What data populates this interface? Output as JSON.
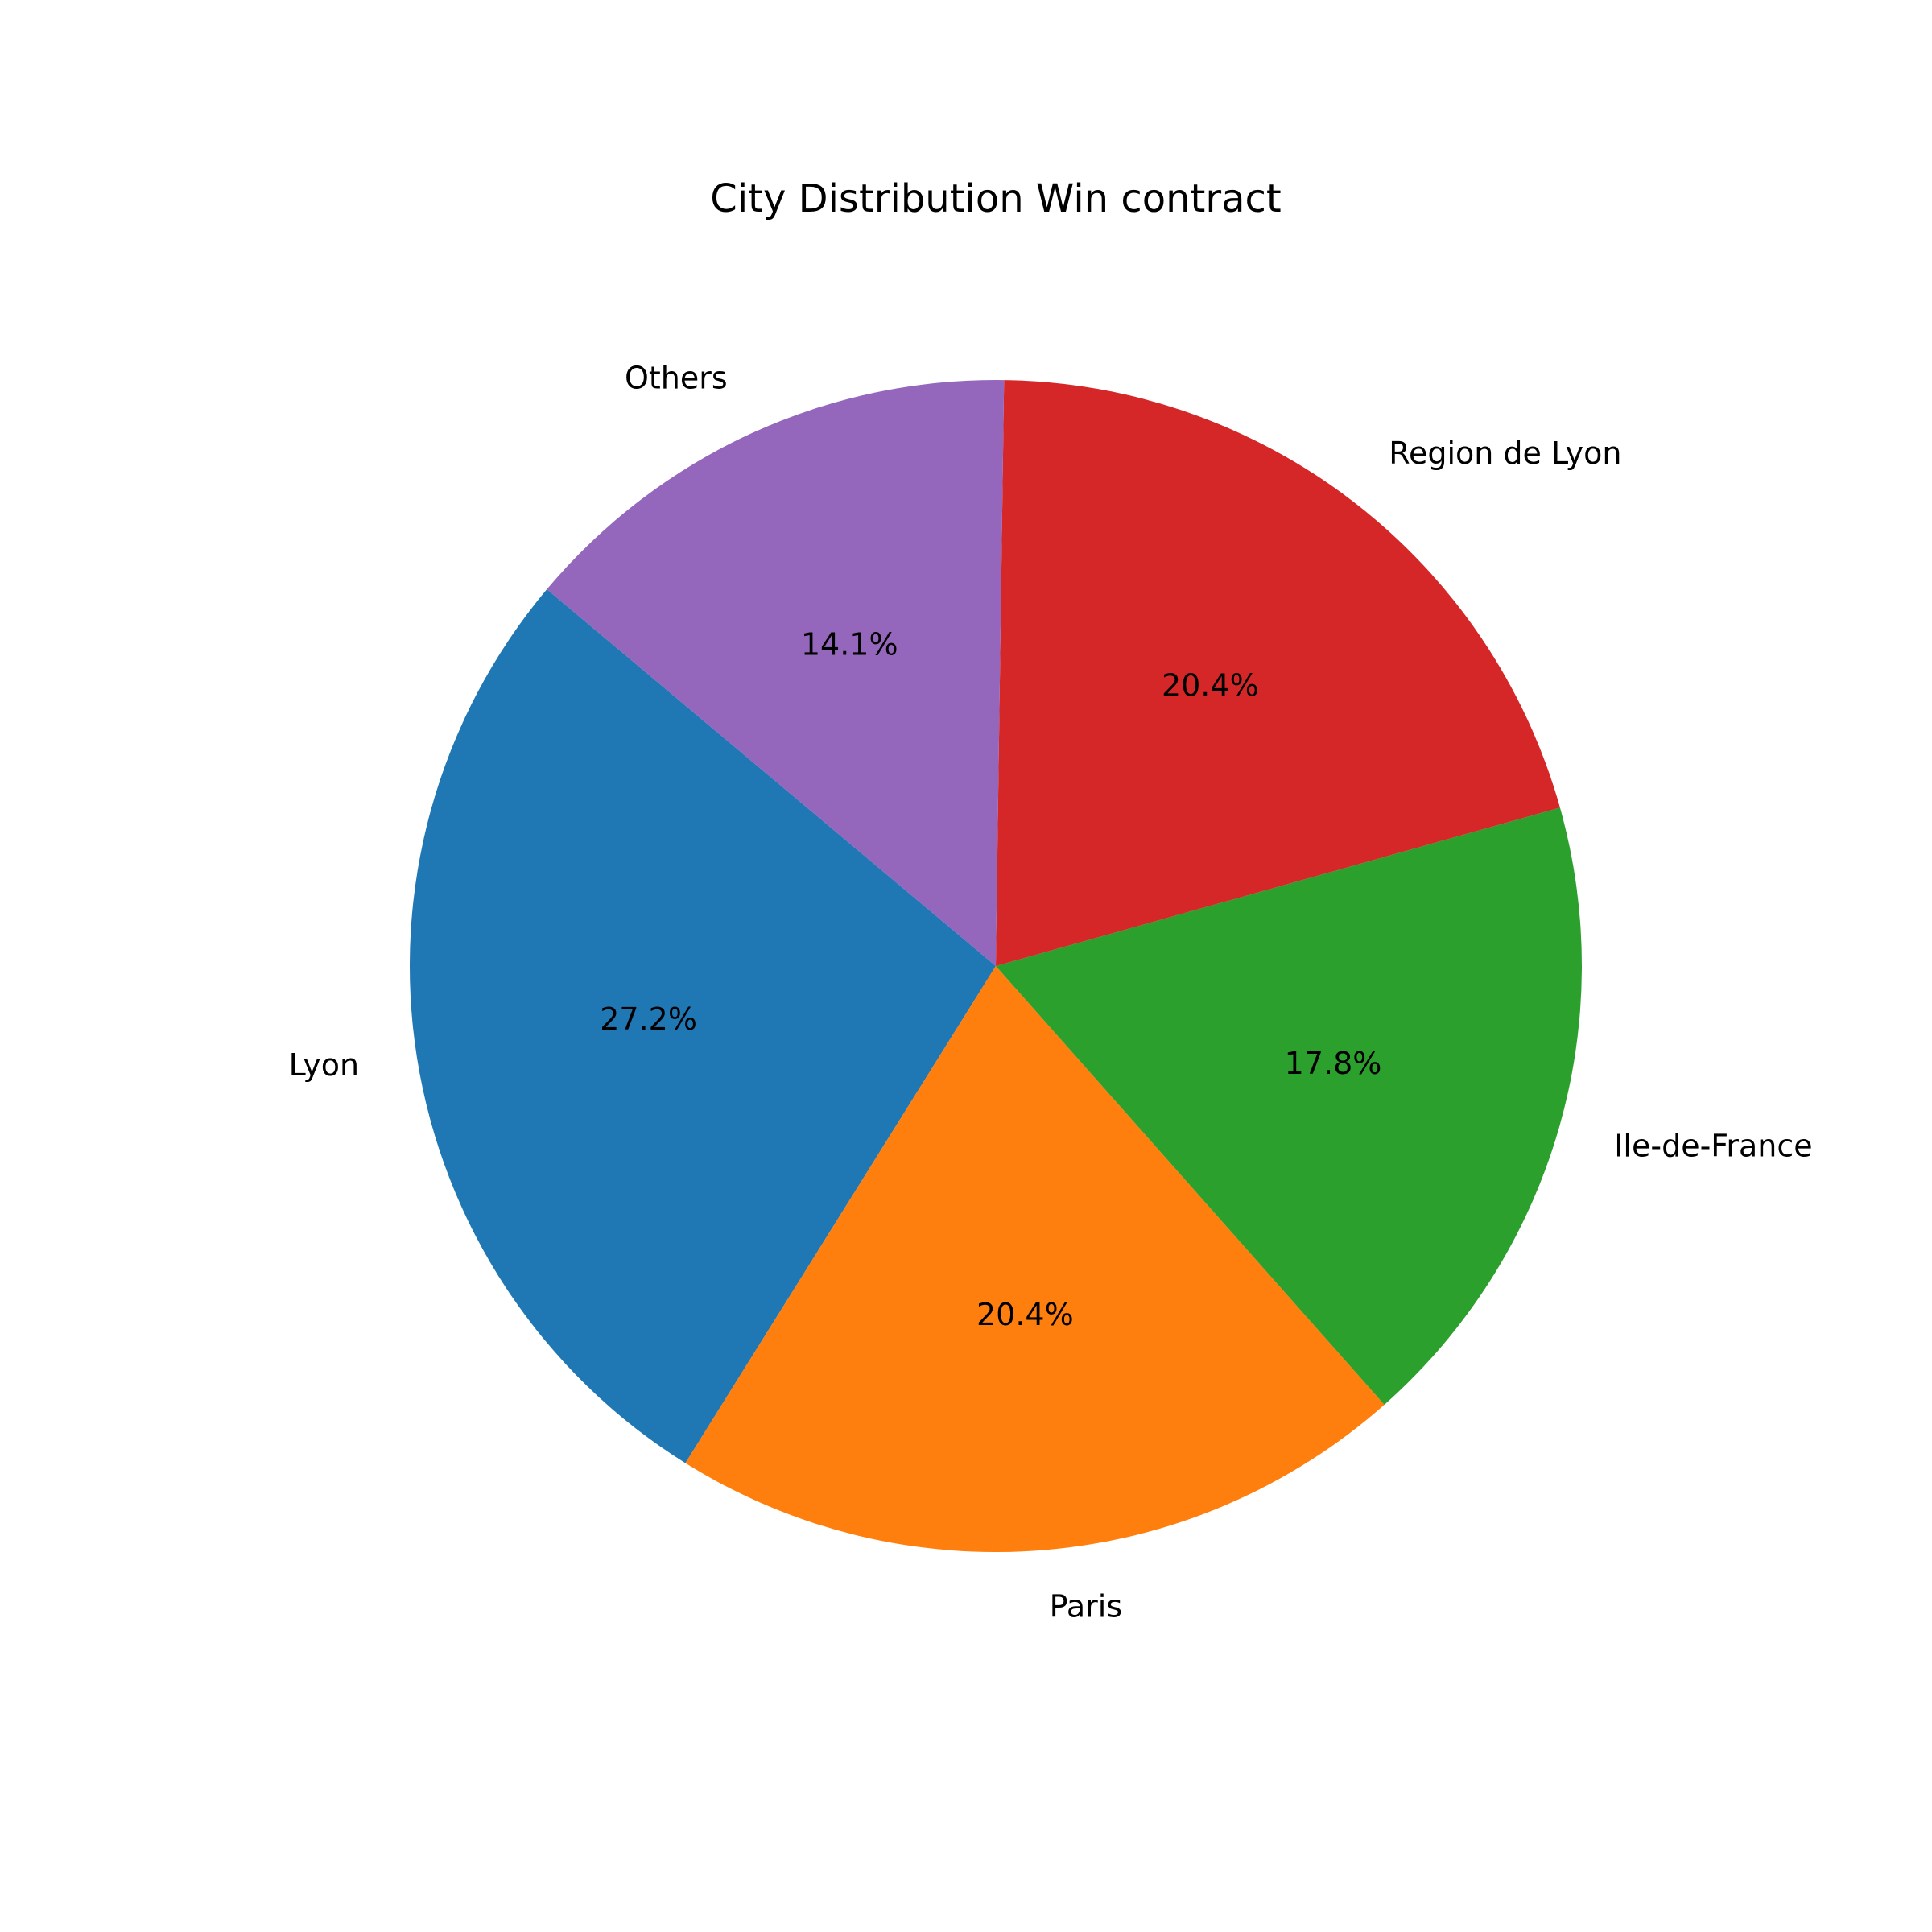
{
  "chart_data": {
    "type": "pie",
    "title": "City Distribution Win contract",
    "categories": [
      "Lyon",
      "Paris",
      "Ile-de-France",
      "Region de Lyon",
      "Others"
    ],
    "values": [
      27.2,
      20.4,
      17.8,
      20.4,
      14.1
    ],
    "percent_labels": [
      "27.2%",
      "20.4%",
      "17.8%",
      "20.4%",
      "14.1%"
    ],
    "colors": [
      "#1f77b4",
      "#ff7f0e",
      "#2ca02c",
      "#d62728",
      "#9467bd"
    ],
    "start_angle_deg": 140,
    "direction": "counterclockwise",
    "legend": "none"
  }
}
